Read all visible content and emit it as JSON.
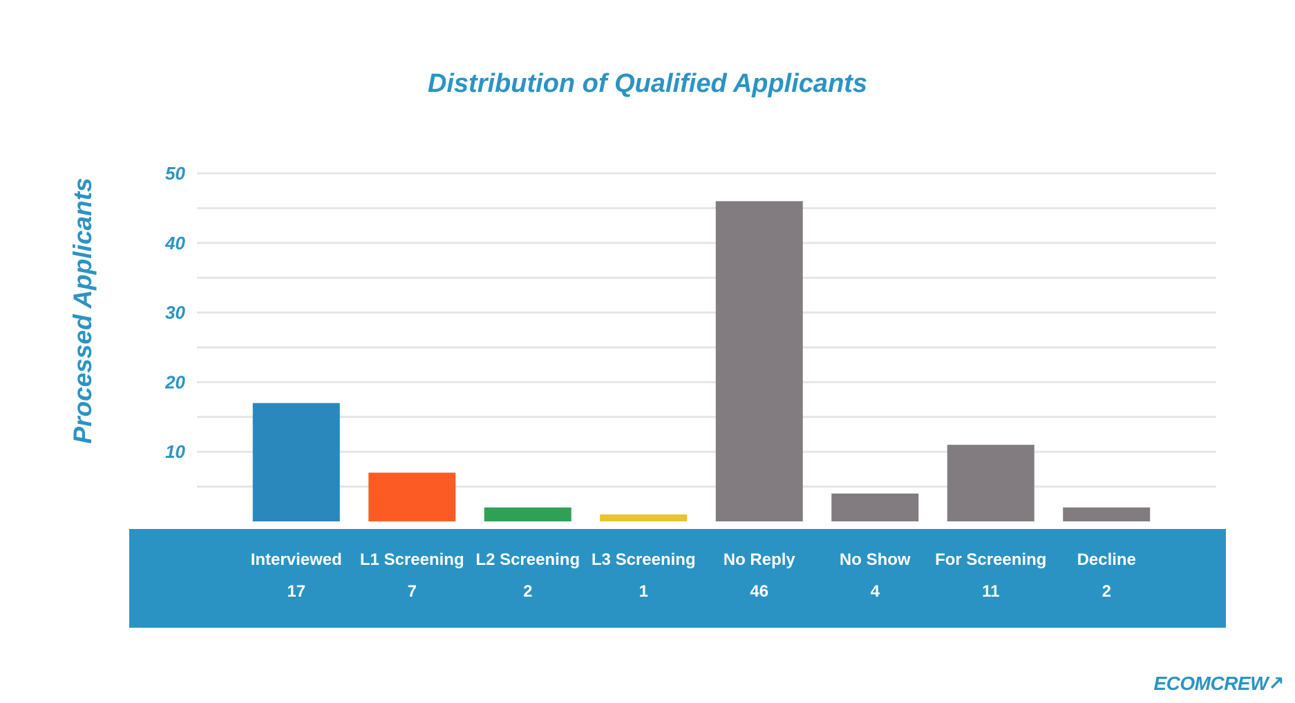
{
  "chart_data": {
    "type": "bar",
    "title": "Distribution of Qualified Applicants",
    "xlabel": "",
    "ylabel": "Processed Applicants",
    "categories": [
      "Interviewed",
      "L1 Screening",
      "L2 Screening",
      "L3 Screening",
      "No Reply",
      "No Show",
      "For Screening",
      "Decline"
    ],
    "values": [
      17,
      7,
      2,
      1,
      46,
      4,
      11,
      2
    ],
    "bar_colors": [
      "#2b88bd",
      "#fc5c24",
      "#2fa157",
      "#e8c332",
      "#827c80",
      "#827c80",
      "#827c80",
      "#827c80"
    ],
    "ylim": [
      0,
      50
    ],
    "yticks": [
      10,
      20,
      30,
      40,
      50
    ],
    "grid": true,
    "legend": "none"
  },
  "colors": {
    "accent": "#2b93c4",
    "band": "#2b93c4",
    "label_text": "#ffffff",
    "grid": "#e6e6e6"
  },
  "brand": {
    "logo_text": "ECOMCREW",
    "icon": "arrow-up-right-icon"
  }
}
